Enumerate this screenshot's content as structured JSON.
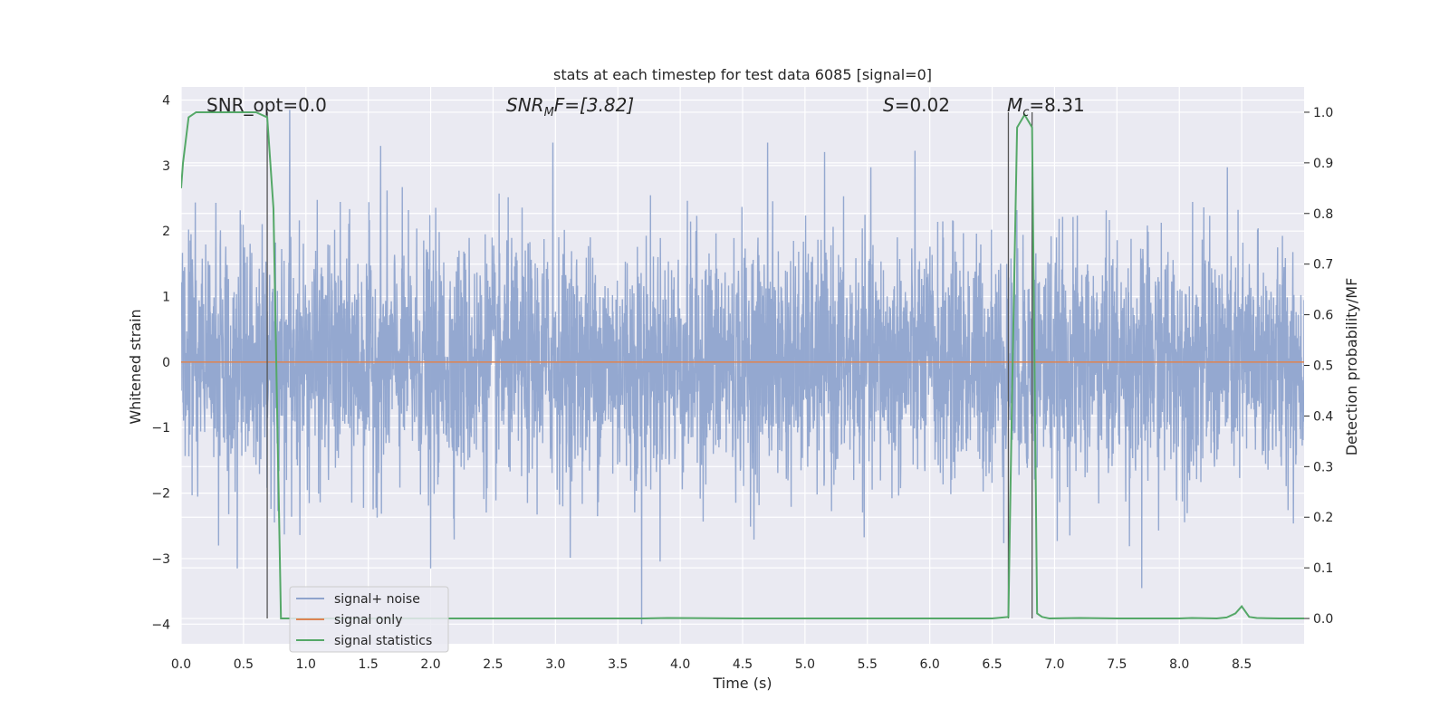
{
  "chart_data": {
    "type": "line",
    "title": "stats at each timestep for test data 6085 [signal=0]",
    "xlabel": "Time (s)",
    "ylabel": "Whitened strain",
    "ylabel_right": "Detection probability/MF",
    "xlim": [
      0.0,
      9.0
    ],
    "ylim": [
      -4.3,
      4.2
    ],
    "ylim_right": [
      -0.05,
      1.05
    ],
    "x_ticks": [
      0.0,
      0.5,
      1.0,
      1.5,
      2.0,
      2.5,
      3.0,
      3.5,
      4.0,
      4.5,
      5.0,
      5.5,
      6.0,
      6.5,
      7.0,
      7.5,
      8.0,
      8.5
    ],
    "x_tick_labels": [
      "0.0",
      "0.5",
      "1.0",
      "1.5",
      "2.0",
      "2.5",
      "3.0",
      "3.5",
      "4.0",
      "4.5",
      "5.0",
      "5.5",
      "6.0",
      "6.5",
      "7.0",
      "7.5",
      "8.0",
      "8.5"
    ],
    "y_ticks": [
      -4,
      -3,
      -2,
      -1,
      0,
      1,
      2,
      3,
      4
    ],
    "y_tick_labels": [
      "−4",
      "−3",
      "−2",
      "−1",
      "0",
      "1",
      "2",
      "3",
      "4"
    ],
    "y_ticks_right": [
      0.0,
      0.1,
      0.2,
      0.3,
      0.4,
      0.5,
      0.6,
      0.7,
      0.8,
      0.9,
      1.0
    ],
    "y_tick_labels_right": [
      "0.0",
      "0.1",
      "0.2",
      "0.3",
      "0.4",
      "0.5",
      "0.6",
      "0.7",
      "0.8",
      "0.9",
      "1.0"
    ],
    "grid": true,
    "legend_position": "lower-left",
    "annotations": {
      "snr_opt": "SNR_opt=0.0",
      "snr_mf_main": "SNR",
      "snr_mf_sub": "M",
      "snr_mf_rest": "F=[3.82]",
      "s_main": "S",
      "s_rest": "=0.02",
      "mc_main": "M",
      "mc_sub": "c",
      "mc_rest": "=8.31"
    },
    "vertical_lines_x": [
      0.69,
      6.63,
      6.82
    ],
    "series": [
      {
        "name": "signal+ noise",
        "color": "#8fa4cd",
        "noise_std": 0.9,
        "n_samples": 4200,
        "spikes": [
          [
            0.87,
            3.85
          ],
          [
            3.69,
            -4.0
          ],
          [
            7.7,
            -3.45
          ],
          [
            2.0,
            -3.15
          ],
          [
            0.45,
            -3.15
          ],
          [
            4.7,
            3.35
          ],
          [
            2.98,
            3.35
          ],
          [
            1.6,
            3.3
          ]
        ]
      },
      {
        "name": "signal only",
        "color": "#dd8452",
        "x": [
          0.0,
          9.0
        ],
        "y": [
          0.0,
          0.0
        ]
      },
      {
        "name": "signal statistics",
        "color": "#55a868",
        "axis": "right",
        "x": [
          0.0,
          0.015,
          0.06,
          0.12,
          0.2,
          0.3,
          0.4,
          0.5,
          0.6,
          0.69,
          0.74,
          0.8,
          0.85,
          1.0,
          2.0,
          3.0,
          3.5,
          3.7,
          3.9,
          4.5,
          5.0,
          5.5,
          6.0,
          6.5,
          6.63,
          6.66,
          6.7,
          6.76,
          6.82,
          6.86,
          6.9,
          6.96,
          7.2,
          7.5,
          8.0,
          8.1,
          8.3,
          8.38,
          8.45,
          8.5,
          8.56,
          8.62,
          8.8,
          9.0
        ],
        "y": [
          0.85,
          0.9,
          0.99,
          1.0,
          1.0,
          1.0,
          1.0,
          1.0,
          1.0,
          0.99,
          0.81,
          0.0,
          0.0,
          0.0,
          0.0,
          0.0,
          0.0,
          0.0,
          0.001,
          0.0,
          0.0,
          0.0,
          0.0,
          0.0,
          0.003,
          0.45,
          0.97,
          0.995,
          0.97,
          0.01,
          0.003,
          0.0,
          0.001,
          0.0,
          0.0,
          0.001,
          0.0,
          0.002,
          0.01,
          0.024,
          0.003,
          0.001,
          0.0,
          0.0
        ]
      }
    ]
  }
}
